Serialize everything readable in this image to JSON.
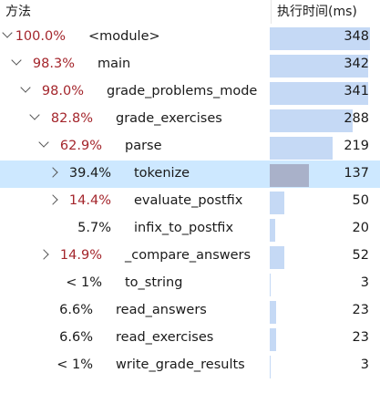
{
  "header": {
    "method_label": "方法",
    "time_label": "执行时间(ms)"
  },
  "colors": {
    "hot_pct": "#a4262c",
    "bar": "#c5d9f5",
    "bar_selected": "#a9b1c9",
    "row_selected": "#cde8ff"
  },
  "rows": [
    {
      "pct": "100.0%",
      "name": "<module>",
      "ms": "348",
      "hot": true,
      "expand": "down",
      "depth": 0,
      "fraction": 1.0
    },
    {
      "pct": "98.3%",
      "name": "main",
      "ms": "342",
      "hot": true,
      "expand": "down",
      "depth": 1,
      "fraction": 0.983
    },
    {
      "pct": "98.0%",
      "name": "grade_problems_mode",
      "ms": "341",
      "hot": true,
      "expand": "down",
      "depth": 2,
      "fraction": 0.98
    },
    {
      "pct": "82.8%",
      "name": "grade_exercises",
      "ms": "288",
      "hot": true,
      "expand": "down",
      "depth": 3,
      "fraction": 0.828
    },
    {
      "pct": "62.9%",
      "name": "parse",
      "ms": "219",
      "hot": true,
      "expand": "down",
      "depth": 4,
      "fraction": 0.629
    },
    {
      "pct": "39.4%",
      "name": "tokenize",
      "ms": "137",
      "hot": false,
      "expand": "right",
      "depth": 5,
      "fraction": 0.394,
      "selected": true
    },
    {
      "pct": "14.4%",
      "name": "evaluate_postfix",
      "ms": "50",
      "hot": true,
      "expand": "right",
      "depth": 5,
      "fraction": 0.144
    },
    {
      "pct": "5.7%",
      "name": "infix_to_postfix",
      "ms": "20",
      "hot": false,
      "expand": "none",
      "depth": 5,
      "fraction": 0.057
    },
    {
      "pct": "14.9%",
      "name": "_compare_answers",
      "ms": "52",
      "hot": true,
      "expand": "right",
      "depth": 4,
      "fraction": 0.149
    },
    {
      "pct": "< 1%",
      "name": "to_string",
      "ms": "3",
      "hot": false,
      "expand": "none",
      "depth": 4,
      "fraction": 0.009
    },
    {
      "pct": "6.6%",
      "name": "read_answers",
      "ms": "23",
      "hot": false,
      "expand": "none",
      "depth": 3,
      "fraction": 0.066
    },
    {
      "pct": "6.6%",
      "name": "read_exercises",
      "ms": "23",
      "hot": false,
      "expand": "none",
      "depth": 3,
      "fraction": 0.066
    },
    {
      "pct": "< 1%",
      "name": "write_grade_results",
      "ms": "3",
      "hot": false,
      "expand": "none",
      "depth": 3,
      "fraction": 0.009
    }
  ]
}
